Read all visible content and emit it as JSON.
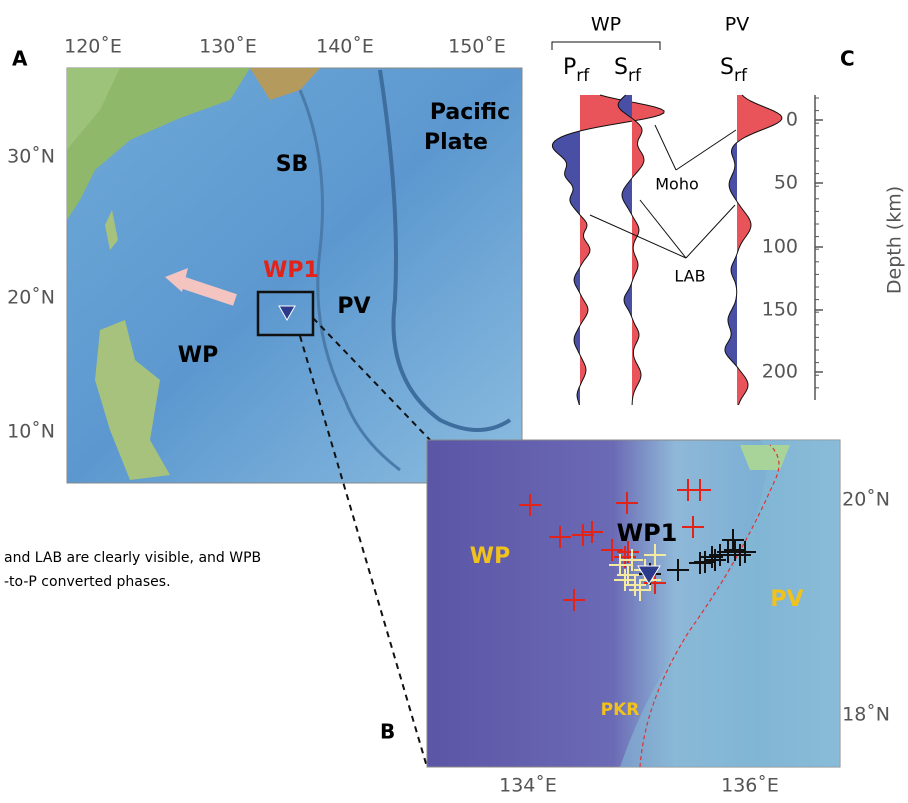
{
  "panel_a": {
    "label": "A",
    "lon_labels": [
      "120˚E",
      "130˚E",
      "140˚E",
      "150˚E"
    ],
    "lat_labels": [
      "30˚N",
      "20˚N",
      "10˚N"
    ],
    "sb": "SB",
    "pacific": [
      "Pacific",
      "Plate"
    ],
    "wp1": "WP1",
    "pv": "PV",
    "wp": "WP"
  },
  "caption": [
    "and LAB are clearly visible, and WPB",
    "-to-P converted phases."
  ],
  "panel_b": {
    "label": "B",
    "lat_labels": [
      "20˚N",
      "18˚N"
    ],
    "lon_labels": [
      "134˚E",
      "136˚E"
    ],
    "wp1": "WP1",
    "wp": "WP",
    "pv": "PV",
    "pkr": "PKR"
  },
  "panel_c": {
    "label": "C",
    "group_wp": "WP",
    "group_pv": "PV",
    "p_rf": {
      "main": "P",
      "sub": "rf"
    },
    "s_rf_wp": {
      "main": "S",
      "sub": "rf"
    },
    "s_rf_pv": {
      "main": "S",
      "sub": "rf"
    },
    "moho": "Moho",
    "lab": "LAB",
    "depth_ticks": [
      "0",
      "50",
      "100",
      "150",
      "200"
    ],
    "depth_label": "Depth (km)"
  }
}
